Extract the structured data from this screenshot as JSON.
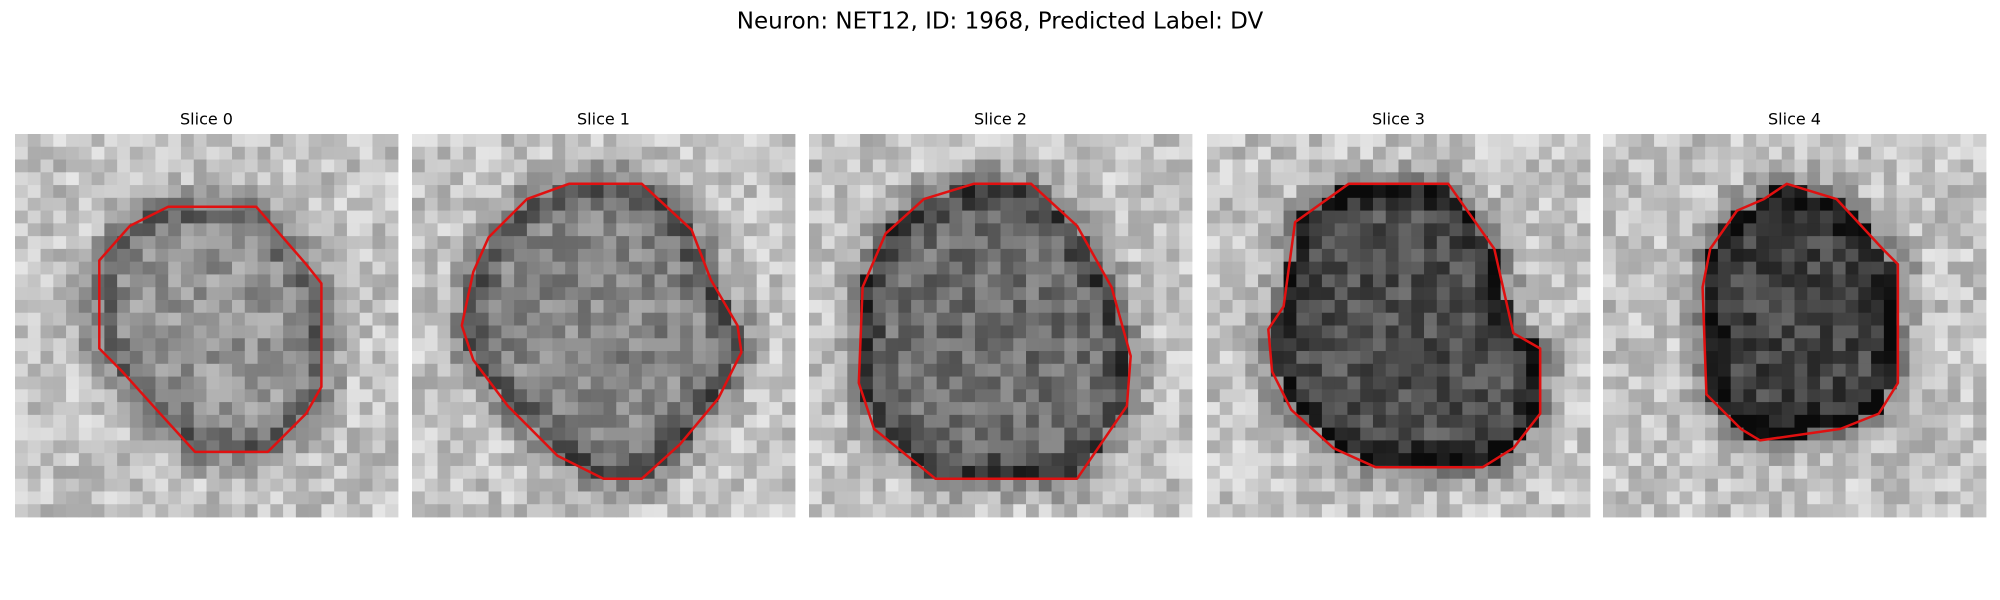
{
  "title": "Neuron: NET12, ID: 1968, Predicted Label: DV",
  "panels": [
    {
      "title": "Slice 0"
    },
    {
      "title": "Slice 1"
    },
    {
      "title": "Slice 2"
    },
    {
      "title": "Slice 3"
    },
    {
      "title": "Slice 4"
    }
  ]
}
